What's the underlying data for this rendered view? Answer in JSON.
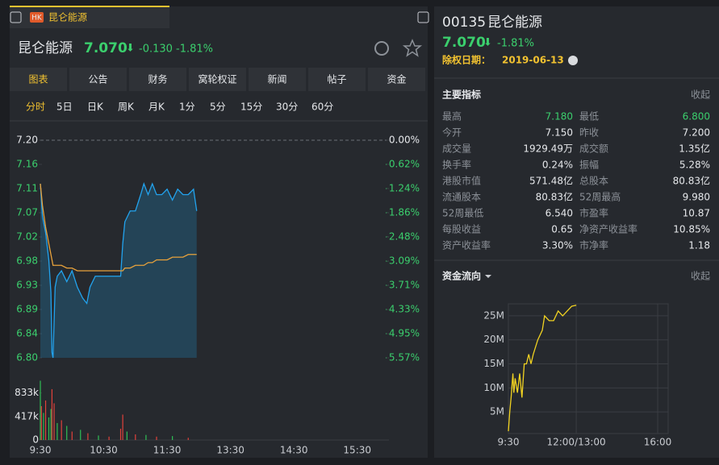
{
  "tab": {
    "badge": "HK",
    "label": "昆仑能源"
  },
  "quote": {
    "name": "昆仑能源",
    "price": "7.070",
    "change": "-0.130",
    "change_pct": "-1.81%"
  },
  "menu": [
    "图表",
    "公告",
    "财务",
    "窝轮权证",
    "新闻",
    "帖子",
    "资金"
  ],
  "periods": [
    "分时",
    "5日",
    "日K",
    "周K",
    "月K",
    "1分",
    "5分",
    "15分",
    "30分",
    "60分"
  ],
  "chart_data": [
    {
      "type": "line",
      "x": [
        "9:30",
        "9:32",
        "9:35",
        "9:38",
        "9:40",
        "9:41",
        "9:42",
        "9:44",
        "9:46",
        "9:50",
        "9:55",
        "10:00",
        "10:05",
        "10:10",
        "10:14",
        "10:17",
        "10:22",
        "10:30",
        "10:40",
        "10:46",
        "10:48",
        "10:50",
        "10:55",
        "11:00",
        "11:05",
        "11:08",
        "11:12",
        "11:16",
        "11:20",
        "11:25",
        "11:30",
        "11:35",
        "11:40",
        "11:45",
        "11:50",
        "11:55",
        "11:58"
      ],
      "series": [
        {
          "color": "#22a3ee",
          "values": [
            7.12,
            7.06,
            7.03,
            6.98,
            6.92,
            6.81,
            6.8,
            6.93,
            6.95,
            6.96,
            6.94,
            6.96,
            6.93,
            6.91,
            6.9,
            6.93,
            6.95,
            6.95,
            6.95,
            6.95,
            7.01,
            7.05,
            7.07,
            7.07,
            7.1,
            7.12,
            7.1,
            7.12,
            7.1,
            7.1,
            7.11,
            7.09,
            7.11,
            7.1,
            7.1,
            7.11,
            7.07
          ]
        },
        {
          "color": "#e9a23b",
          "values": [
            7.12,
            7.08,
            7.04,
            7.01,
            6.99,
            6.98,
            6.97,
            6.97,
            6.97,
            6.97,
            6.965,
            6.965,
            6.96,
            6.96,
            6.96,
            6.96,
            6.96,
            6.96,
            6.96,
            6.96,
            6.96,
            6.965,
            6.965,
            6.97,
            6.97,
            6.97,
            6.975,
            6.975,
            6.98,
            6.98,
            6.98,
            6.985,
            6.985,
            6.985,
            6.99,
            6.99,
            6.99
          ]
        }
      ],
      "xlim": [
        "9:30",
        "16:00"
      ],
      "xticks": [
        "9:30",
        "10:30",
        "11:30",
        "13:30",
        "14:30",
        "15:30"
      ],
      "ylim": [
        6.8,
        7.2
      ],
      "yticks": [
        {
          "value": 7.2,
          "label": "7.20"
        },
        {
          "value": 7.1556,
          "label": "7.16"
        },
        {
          "value": 7.1111,
          "label": "7.11"
        },
        {
          "value": 7.0667,
          "label": "7.07"
        },
        {
          "value": 7.0222,
          "label": "7.02"
        },
        {
          "value": 6.9778,
          "label": "6.98"
        },
        {
          "value": 6.9333,
          "label": "6.93"
        },
        {
          "value": 6.8889,
          "label": "6.89"
        },
        {
          "value": 6.8444,
          "label": "6.84"
        },
        {
          "value": 6.8,
          "label": "6.80"
        }
      ],
      "y2lim": [
        -5.57,
        0
      ],
      "y2ticks": [
        {
          "value": 0,
          "label": "0.00%"
        },
        {
          "value": -0.62,
          "label": "-0.62%"
        },
        {
          "value": -1.24,
          "label": "-1.24%"
        },
        {
          "value": -1.86,
          "label": "-1.86%"
        },
        {
          "value": -2.48,
          "label": "-2.48%"
        },
        {
          "value": -3.09,
          "label": "-3.09%"
        },
        {
          "value": -3.71,
          "label": "-3.71%"
        },
        {
          "value": -4.33,
          "label": "-4.33%"
        },
        {
          "value": -4.95,
          "label": "-4.95%"
        },
        {
          "value": -5.57,
          "label": "-5.57%"
        }
      ]
    },
    {
      "type": "bar",
      "x": [
        "9:30",
        "9:31",
        "9:33",
        "9:35",
        "9:38",
        "9:40",
        "9:41",
        "9:43",
        "9:46",
        "9:50",
        "9:55",
        "10:00",
        "10:08",
        "10:15",
        "10:25",
        "10:35",
        "10:46",
        "10:48",
        "10:52",
        "11:00",
        "11:10",
        "11:20",
        "11:35",
        "11:50"
      ],
      "values": [
        1050000,
        600000,
        480000,
        700000,
        400000,
        550000,
        900000,
        650000,
        300000,
        350000,
        250000,
        150000,
        180000,
        120000,
        80000,
        60000,
        200000,
        450000,
        150000,
        100000,
        90000,
        60000,
        70000,
        40000
      ],
      "colors": [
        "#2fbf55",
        "#e0413b",
        "#2fbf55",
        "#e0413b",
        "#2fbf55",
        "#2fbf55",
        "#e0413b",
        "#e0413b",
        "#2fbf55",
        "#e0413b",
        "#2fbf55",
        "#e0413b",
        "#2fbf55",
        "#e0413b",
        "#2fbf55",
        "#e0413b",
        "#e0413b",
        "#e0413b",
        "#2fbf55",
        "#e0413b",
        "#2fbf55",
        "#e0413b",
        "#2fbf55",
        "#e0413b"
      ],
      "xlim": [
        "9:30",
        "16:00"
      ],
      "ylim": [
        0,
        1070000
      ],
      "yticks": [
        0,
        {
          "value": 417000,
          "label": "417k"
        },
        {
          "value": 833000,
          "label": "833k"
        }
      ]
    },
    {
      "type": "line",
      "x": [
        "9:30",
        "9:33",
        "9:36",
        "9:40",
        "9:42",
        "9:45",
        "9:50",
        "9:55",
        "10:00",
        "10:05",
        "10:10",
        "10:15",
        "10:20",
        "10:25",
        "10:35",
        "10:45",
        "10:50",
        "11:00",
        "11:10",
        "11:20",
        "11:30",
        "11:40",
        "11:50",
        "12:00"
      ],
      "values": [
        1000000,
        5000000,
        8000000,
        13000000,
        9000000,
        12000000,
        9000000,
        13000000,
        8000000,
        15000000,
        15000000,
        17000000,
        15000000,
        17000000,
        20000000,
        22000000,
        25000000,
        24000000,
        24000000,
        26000000,
        25000000,
        26000000,
        27000000,
        27200000
      ],
      "color": "#f2d321",
      "grid": true,
      "xlim": [
        "9:30",
        "16:00"
      ],
      "xticks": [
        "9:30",
        "12:00/13:00",
        "16:00"
      ],
      "ylim": [
        500000,
        27500000
      ],
      "yticks": [
        {
          "value": 5000000,
          "label": "5M"
        },
        {
          "value": 10000000,
          "label": "10M"
        },
        {
          "value": 15000000,
          "label": "15M"
        },
        {
          "value": 20000000,
          "label": "20M"
        },
        {
          "value": 25000000,
          "label": "25M"
        }
      ]
    }
  ],
  "side": {
    "code": "00135",
    "name": "昆仑能源",
    "price": "7.070",
    "change_pct": "-1.81%",
    "ex_date_label": "除权日期：",
    "ex_date": "2019-06-13",
    "indicators_title": "主要指标",
    "indicators_collapse": "收起",
    "indicators": [
      [
        "最高",
        "7.180"
      ],
      [
        "最低",
        "6.800"
      ],
      [
        "今开",
        "7.150"
      ],
      [
        "昨收",
        "7.200"
      ],
      [
        "成交量",
        "1929.49万"
      ],
      [
        "成交额",
        "1.35亿"
      ],
      [
        "换手率",
        "0.24%"
      ],
      [
        "振幅",
        "5.28%"
      ],
      [
        "港股市值",
        "571.48亿"
      ],
      [
        "总股本",
        "80.83亿"
      ],
      [
        "流通股本",
        "80.83亿"
      ],
      [
        "52周最高",
        "9.980"
      ],
      [
        "52周最低",
        "6.540"
      ],
      [
        "市盈率",
        "10.87"
      ],
      [
        "每股收益",
        "0.65"
      ],
      [
        "净资产收益率",
        "10.85%"
      ],
      [
        "资产收益率",
        "3.30%"
      ],
      [
        "市净率",
        "1.18"
      ]
    ],
    "flow_title": "资金流向",
    "flow_collapse": "收起"
  }
}
